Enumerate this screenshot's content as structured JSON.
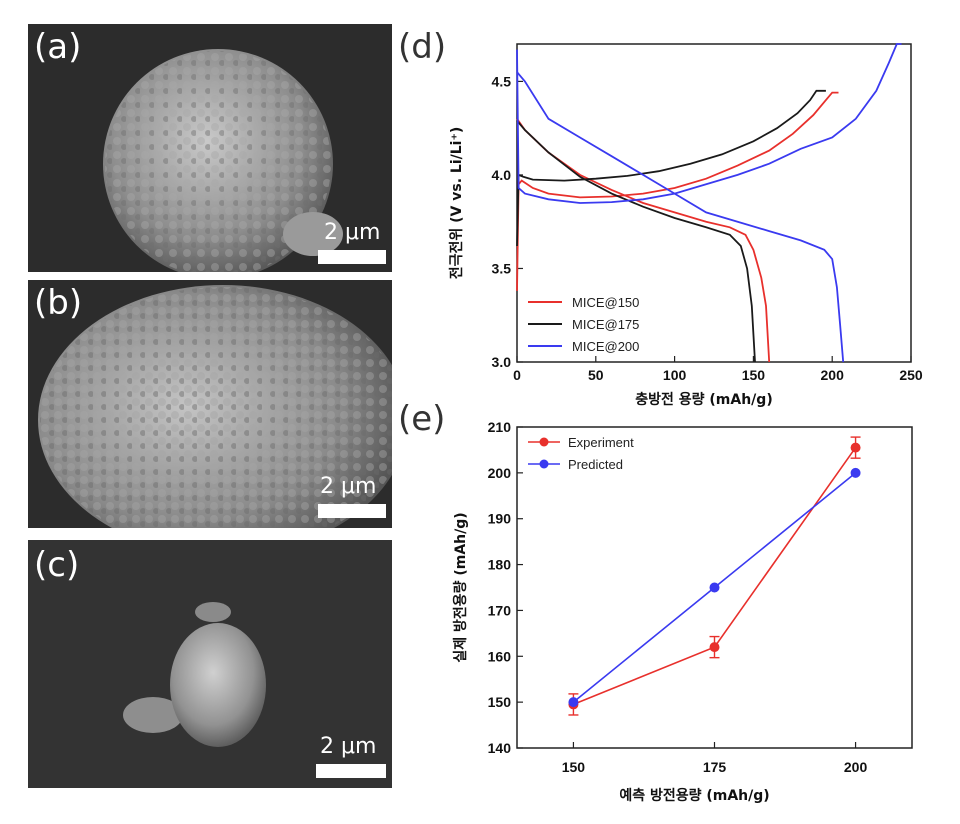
{
  "panels": {
    "a": {
      "label": "(a)",
      "scale": "2 μm"
    },
    "b": {
      "label": "(b)",
      "scale": "2 μm"
    },
    "c": {
      "label": "(c)",
      "scale": "2 μm"
    },
    "d": {
      "label": "(d)"
    },
    "e": {
      "label": "(e)"
    }
  },
  "colors": {
    "red": "#e8302c",
    "black": "#1a1a1a",
    "blue": "#3a3af0"
  },
  "chart_data": [
    {
      "type": "line",
      "panel": "(d)",
      "xlabel": "충방전 용량 (mAh/g)",
      "ylabel": "전극전위 (V vs. Li/Li⁺)",
      "xlim": [
        0,
        250
      ],
      "ylim": [
        3.0,
        4.7
      ],
      "xticks": [
        0,
        50,
        100,
        150,
        200,
        250
      ],
      "yticks": [
        3.0,
        3.5,
        4.0,
        4.5
      ],
      "legend_position": "bottom-left",
      "series": [
        {
          "name": "MICE@150",
          "color": "#e8302c",
          "charge": [
            [
              0,
              3.38
            ],
            [
              1,
              3.95
            ],
            [
              3,
              3.97
            ],
            [
              10,
              3.93
            ],
            [
              20,
              3.9
            ],
            [
              40,
              3.88
            ],
            [
              60,
              3.885
            ],
            [
              80,
              3.9
            ],
            [
              100,
              3.93
            ],
            [
              120,
              3.98
            ],
            [
              140,
              4.05
            ],
            [
              160,
              4.13
            ],
            [
              175,
              4.22
            ],
            [
              188,
              4.32
            ],
            [
              196,
              4.4
            ],
            [
              200,
              4.44
            ],
            [
              204,
              4.44
            ]
          ],
          "discharge": [
            [
              0,
              4.3
            ],
            [
              5,
              4.24
            ],
            [
              20,
              4.12
            ],
            [
              40,
              4.0
            ],
            [
              60,
              3.92
            ],
            [
              80,
              3.85
            ],
            [
              100,
              3.8
            ],
            [
              120,
              3.75
            ],
            [
              135,
              3.72
            ],
            [
              145,
              3.68
            ],
            [
              150,
              3.6
            ],
            [
              155,
              3.45
            ],
            [
              158,
              3.3
            ],
            [
              159,
              3.15
            ],
            [
              160,
              3.0
            ]
          ]
        },
        {
          "name": "MICE@175",
          "color": "#1a1a1a",
          "charge": [
            [
              0,
              3.62
            ],
            [
              1,
              4.0
            ],
            [
              4,
              3.99
            ],
            [
              10,
              3.975
            ],
            [
              30,
              3.97
            ],
            [
              50,
              3.98
            ],
            [
              70,
              3.995
            ],
            [
              90,
              4.02
            ],
            [
              110,
              4.06
            ],
            [
              130,
              4.11
            ],
            [
              150,
              4.18
            ],
            [
              165,
              4.25
            ],
            [
              178,
              4.33
            ],
            [
              186,
              4.4
            ],
            [
              190,
              4.45
            ],
            [
              196,
              4.45
            ]
          ],
          "discharge": [
            [
              0,
              4.29
            ],
            [
              5,
              4.24
            ],
            [
              20,
              4.12
            ],
            [
              40,
              3.99
            ],
            [
              60,
              3.9
            ],
            [
              80,
              3.83
            ],
            [
              100,
              3.77
            ],
            [
              120,
              3.72
            ],
            [
              135,
              3.68
            ],
            [
              142,
              3.62
            ],
            [
              146,
              3.5
            ],
            [
              149,
              3.3
            ],
            [
              150,
              3.15
            ],
            [
              151,
              3.0
            ]
          ]
        },
        {
          "name": "MICE@200",
          "color": "#3a3af0",
          "charge": [
            [
              0,
              4.67
            ],
            [
              1,
              3.93
            ],
            [
              5,
              3.9
            ],
            [
              20,
              3.87
            ],
            [
              40,
              3.85
            ],
            [
              60,
              3.855
            ],
            [
              80,
              3.87
            ],
            [
              100,
              3.9
            ],
            [
              120,
              3.95
            ],
            [
              140,
              4.0
            ],
            [
              160,
              4.06
            ],
            [
              180,
              4.14
            ],
            [
              200,
              4.2
            ],
            [
              215,
              4.3
            ],
            [
              228,
              4.45
            ],
            [
              236,
              4.6
            ],
            [
              241,
              4.7
            ],
            [
              244,
              4.7
            ]
          ],
          "discharge": [
            [
              0,
              4.55
            ],
            [
              5,
              4.5
            ],
            [
              20,
              4.3
            ],
            [
              40,
              4.2
            ],
            [
              60,
              4.1
            ],
            [
              80,
              4.0
            ],
            [
              100,
              3.9
            ],
            [
              120,
              3.8
            ],
            [
              140,
              3.75
            ],
            [
              160,
              3.7
            ],
            [
              180,
              3.65
            ],
            [
              195,
              3.6
            ],
            [
              200,
              3.55
            ],
            [
              203,
              3.4
            ],
            [
              205,
              3.2
            ],
            [
              207,
              3.0
            ]
          ]
        }
      ]
    },
    {
      "type": "line",
      "panel": "(e)",
      "xlabel": "예측 방전용량 (mAh/g)",
      "ylabel": "실제 방전용량 (mAh/g)",
      "categories": [
        150,
        175,
        200
      ],
      "xlim": [
        140,
        210
      ],
      "ylim": [
        140,
        210
      ],
      "xticks": [
        150,
        175,
        200
      ],
      "yticks": [
        140,
        150,
        160,
        170,
        180,
        190,
        200,
        210
      ],
      "legend_position": "top-left",
      "series": [
        {
          "name": "Experiment",
          "color": "#e8302c",
          "values": [
            149.5,
            162,
            205.5
          ],
          "errors": [
            2.3,
            2.3,
            2.3
          ]
        },
        {
          "name": "Predicted",
          "color": "#3a3af0",
          "values": [
            150,
            175,
            200
          ]
        }
      ]
    }
  ]
}
